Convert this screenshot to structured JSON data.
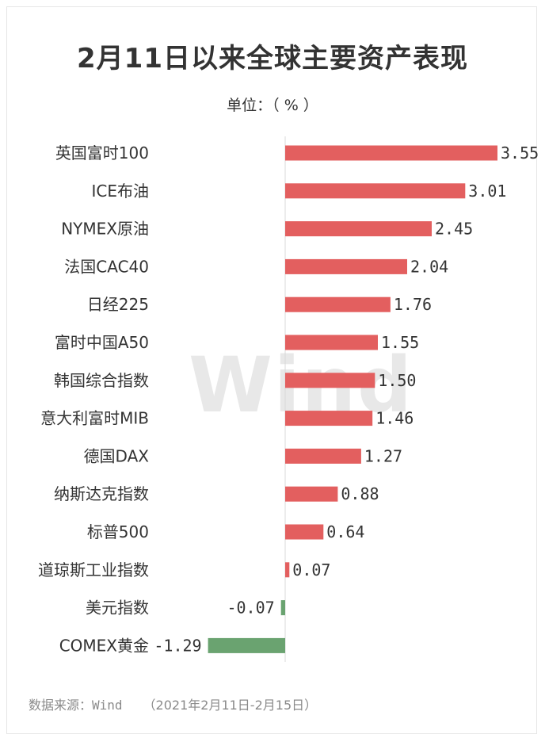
{
  "header": {
    "title": "2月11日以来全球主要资产表现",
    "unit": "单位：（ % ）"
  },
  "watermark": "Wind",
  "footer": {
    "source": "数据来源：Wind",
    "range": "（2021年2月11日-2月15日）"
  },
  "colors": {
    "positive": "#e35f5f",
    "negative": "#6aa370",
    "text": "#333333",
    "axis": "#d9d9d9"
  },
  "chart_data": {
    "type": "bar",
    "orientation": "horizontal",
    "title": "2月11日以来全球主要资产表现",
    "ylabel": "单位：（ % ）",
    "grid": false,
    "categories": [
      "英国富时100",
      "ICE布油",
      "NYMEX原油",
      "法国CAC40",
      "日经225",
      "富时中国A50",
      "韩国综合指数",
      "意大利富时MIB",
      "德国DAX",
      "纳斯达克指数",
      "标普500",
      "道琼斯工业指数",
      "美元指数",
      "COMEX黄金"
    ],
    "values": [
      3.55,
      3.01,
      2.45,
      2.04,
      1.76,
      1.55,
      1.5,
      1.46,
      1.27,
      0.88,
      0.64,
      0.07,
      -0.07,
      -1.29
    ],
    "value_labels": [
      "3.55",
      "3.01",
      "2.45",
      "2.04",
      "1.76",
      "1.55",
      "1.50",
      "1.46",
      "1.27",
      "0.88",
      "0.64",
      "0.07",
      "-0.07",
      "-1.29"
    ]
  }
}
